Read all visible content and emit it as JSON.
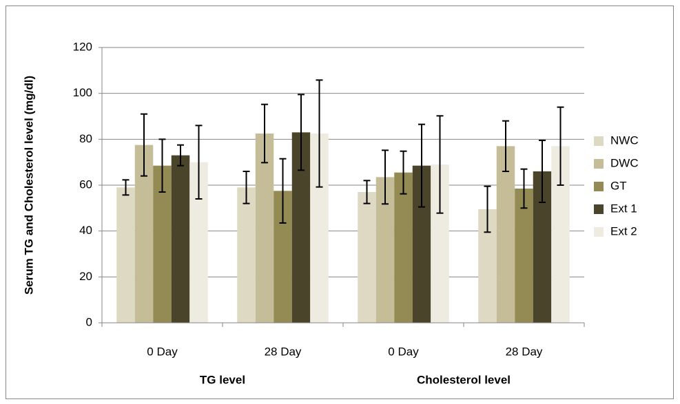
{
  "chart_data": {
    "type": "bar",
    "y_label": "Serum TG and Cholesterol level (mg/dl)",
    "category_groups": [
      {
        "name": "TG level",
        "categories": [
          "0 Day",
          "28 Day"
        ]
      },
      {
        "name": "Cholesterol level",
        "categories": [
          "0 Day",
          "28 Day"
        ]
      }
    ],
    "series": [
      {
        "name": "NWC",
        "color": "#ddd9c3",
        "values": [
          59,
          59,
          57,
          49.5
        ],
        "errors": [
          3.3,
          7,
          5,
          10
        ]
      },
      {
        "name": "DWC",
        "color": "#c4bd97",
        "values": [
          77.5,
          82.5,
          63.5,
          77
        ],
        "errors": [
          13.5,
          12.7,
          11.7,
          11
        ]
      },
      {
        "name": "GT",
        "color": "#948a54",
        "values": [
          68.5,
          57.5,
          65.5,
          58.5
        ],
        "errors": [
          11.5,
          14,
          9.3,
          8.5
        ]
      },
      {
        "name": "Ext 1",
        "color": "#4a452a",
        "values": [
          73,
          83,
          68.5,
          66
        ],
        "errors": [
          4.5,
          16.5,
          18,
          13.5
        ]
      },
      {
        "name": "Ext 2",
        "color": "#eeece1",
        "values": [
          70,
          82.5,
          69,
          77
        ],
        "errors": [
          16,
          23.3,
          21.2,
          17
        ]
      }
    ],
    "ylim": [
      0,
      120
    ],
    "yticks": [
      0,
      20,
      40,
      60,
      80,
      100,
      120
    ],
    "grid": true,
    "legend": "right"
  }
}
